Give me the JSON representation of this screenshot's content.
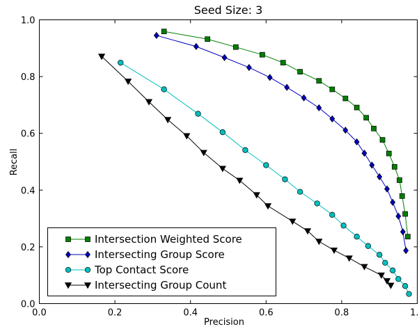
{
  "chart_data": {
    "type": "line",
    "title": "Seed Size: 3",
    "xlabel": "Precision",
    "ylabel": "Recall",
    "xlim": [
      0.0,
      1.0
    ],
    "ylim": [
      0.0,
      1.0
    ],
    "xticks": [
      "0.0",
      "0.2",
      "0.4",
      "0.6",
      "0.8",
      "1.0"
    ],
    "yticks": [
      "0.0",
      "0.2",
      "0.4",
      "0.6",
      "0.8",
      "1.0"
    ],
    "grid": false,
    "legend_placement": "lower-left",
    "series": [
      {
        "name": "Intersection Weighted Score",
        "color": "#007f00",
        "marker": "square",
        "points": [
          [
            0.33,
            0.959
          ],
          [
            0.445,
            0.932
          ],
          [
            0.52,
            0.904
          ],
          [
            0.59,
            0.877
          ],
          [
            0.645,
            0.849
          ],
          [
            0.69,
            0.817
          ],
          [
            0.74,
            0.785
          ],
          [
            0.775,
            0.755
          ],
          [
            0.81,
            0.723
          ],
          [
            0.84,
            0.691
          ],
          [
            0.865,
            0.655
          ],
          [
            0.885,
            0.617
          ],
          [
            0.908,
            0.577
          ],
          [
            0.925,
            0.529
          ],
          [
            0.94,
            0.482
          ],
          [
            0.953,
            0.435
          ],
          [
            0.96,
            0.379
          ],
          [
            0.968,
            0.316
          ],
          [
            0.975,
            0.236
          ]
        ]
      },
      {
        "name": "Intersecting Group Score",
        "color": "#0000bf",
        "marker": "diamond",
        "points": [
          [
            0.31,
            0.945
          ],
          [
            0.415,
            0.906
          ],
          [
            0.49,
            0.867
          ],
          [
            0.555,
            0.832
          ],
          [
            0.61,
            0.797
          ],
          [
            0.655,
            0.762
          ],
          [
            0.7,
            0.725
          ],
          [
            0.74,
            0.69
          ],
          [
            0.775,
            0.651
          ],
          [
            0.81,
            0.611
          ],
          [
            0.84,
            0.57
          ],
          [
            0.86,
            0.53
          ],
          [
            0.88,
            0.488
          ],
          [
            0.9,
            0.447
          ],
          [
            0.92,
            0.404
          ],
          [
            0.935,
            0.357
          ],
          [
            0.95,
            0.308
          ],
          [
            0.962,
            0.253
          ],
          [
            0.97,
            0.187
          ]
        ]
      },
      {
        "name": "Top Contact Score",
        "color": "#00bfbf",
        "marker": "circle",
        "points": [
          [
            0.215,
            0.849
          ],
          [
            0.33,
            0.755
          ],
          [
            0.42,
            0.669
          ],
          [
            0.485,
            0.604
          ],
          [
            0.545,
            0.541
          ],
          [
            0.6,
            0.488
          ],
          [
            0.65,
            0.438
          ],
          [
            0.69,
            0.394
          ],
          [
            0.735,
            0.353
          ],
          [
            0.775,
            0.313
          ],
          [
            0.805,
            0.275
          ],
          [
            0.84,
            0.236
          ],
          [
            0.87,
            0.203
          ],
          [
            0.9,
            0.172
          ],
          [
            0.915,
            0.144
          ],
          [
            0.935,
            0.117
          ],
          [
            0.95,
            0.087
          ],
          [
            0.968,
            0.062
          ],
          [
            0.978,
            0.034
          ]
        ]
      },
      {
        "name": "Intersecting Group Count",
        "color": "#000000",
        "marker": "triangle-down",
        "points": [
          [
            0.165,
            0.871
          ],
          [
            0.235,
            0.783
          ],
          [
            0.29,
            0.711
          ],
          [
            0.34,
            0.648
          ],
          [
            0.39,
            0.591
          ],
          [
            0.435,
            0.532
          ],
          [
            0.485,
            0.476
          ],
          [
            0.53,
            0.434
          ],
          [
            0.575,
            0.383
          ],
          [
            0.605,
            0.344
          ],
          [
            0.67,
            0.29
          ],
          [
            0.71,
            0.256
          ],
          [
            0.74,
            0.219
          ],
          [
            0.78,
            0.188
          ],
          [
            0.82,
            0.16
          ],
          [
            0.86,
            0.13
          ],
          [
            0.905,
            0.1
          ],
          [
            0.92,
            0.08
          ],
          [
            0.93,
            0.064
          ]
        ]
      }
    ]
  }
}
